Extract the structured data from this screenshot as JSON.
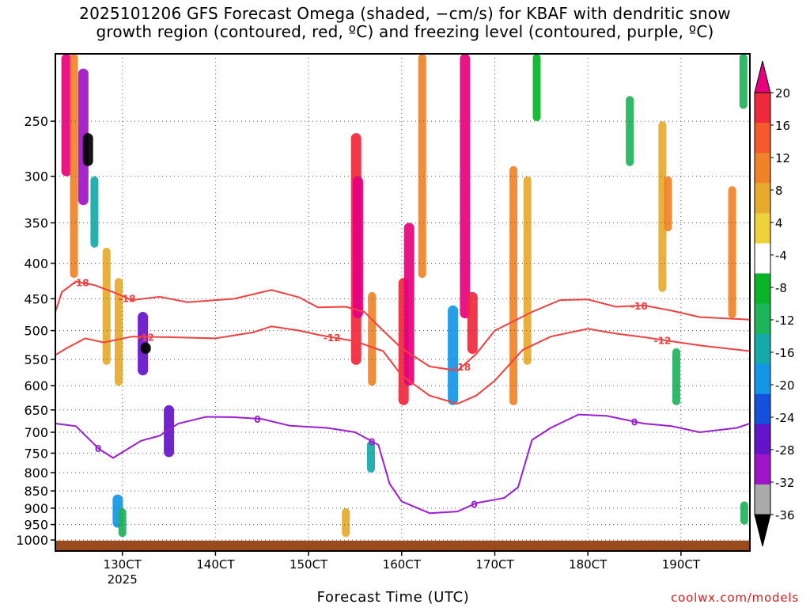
{
  "header": {
    "title_line1": "2025101206 GFS Forecast Omega (shaded, −cm/s) for KBAF with dendritic snow",
    "title_line2": "growth region (contoured, red, ºC) and freezing level (contoured, purple, ºC)"
  },
  "footer": {
    "xlabel": "Forecast Time (UTC)",
    "credit": "coolwx.com/models"
  },
  "chart_data": {
    "type": "heatmap",
    "title": "2025101206 GFS Forecast Omega (shaded, −cm/s) for KBAF with dendritic snow growth region (contoured, red, ºC) and freezing level (contoured, purple, ºC)",
    "xlabel": "Forecast Time (UTC)",
    "ylabel": "Pressure (hPa)",
    "xlim": [
      122.8,
      197.4
    ],
    "ylim": [
      1037,
      200
    ],
    "y_scale": "log",
    "x_ticks": [
      {
        "value": 130,
        "label": "130CT",
        "sublabel": "2025"
      },
      {
        "value": 140,
        "label": "140CT"
      },
      {
        "value": 150,
        "label": "150CT"
      },
      {
        "value": 160,
        "label": "160CT"
      },
      {
        "value": 170,
        "label": "170CT"
      },
      {
        "value": 180,
        "label": "180CT"
      },
      {
        "value": 190,
        "label": "190CT"
      }
    ],
    "y_ticks": [
      250,
      300,
      350,
      400,
      450,
      500,
      550,
      600,
      650,
      700,
      750,
      800,
      850,
      900,
      950,
      1000
    ],
    "grid": true,
    "colorbar": {
      "labels": [
        "20",
        "16",
        "12",
        "8",
        "4",
        "-4",
        "-8",
        "-12",
        "-16",
        "-20",
        "-24",
        "-28",
        "-32",
        "-36"
      ],
      "colors": [
        "#e6007e",
        "#f0283c",
        "#f55a2d",
        "#f08228",
        "#e6aa2d",
        "#eed23c",
        "#ffffff",
        "#0ab428",
        "#1eb45a",
        "#14aaaa",
        "#1496e6",
        "#1450dc",
        "#6414c8",
        "#a014c8",
        "#aaaaaa",
        "#000000"
      ],
      "top_extend_color": "#e6007e",
      "bottom_extend_color": "#000000"
    },
    "omega_cells": [
      {
        "t": 124.0,
        "p1": 200,
        "p2": 300,
        "level": 20
      },
      {
        "t": 124.8,
        "p1": 200,
        "p2": 420,
        "level": 12
      },
      {
        "t": 125.8,
        "p1": 210,
        "p2": 330,
        "level": -28
      },
      {
        "t": 126.3,
        "p1": 260,
        "p2": 290,
        "level": -36
      },
      {
        "t": 127.0,
        "p1": 300,
        "p2": 380,
        "level": -12
      },
      {
        "t": 128.3,
        "p1": 380,
        "p2": 560,
        "level": 8
      },
      {
        "t": 129.6,
        "p1": 420,
        "p2": 600,
        "level": 8
      },
      {
        "t": 132.2,
        "p1": 470,
        "p2": 580,
        "level": -24
      },
      {
        "t": 132.5,
        "p1": 520,
        "p2": 540,
        "level": -36
      },
      {
        "t": 135.0,
        "p1": 640,
        "p2": 760,
        "level": -24
      },
      {
        "t": 129.5,
        "p1": 860,
        "p2": 960,
        "level": -16
      },
      {
        "t": 130.0,
        "p1": 900,
        "p2": 990,
        "level": -8
      },
      {
        "t": 155.1,
        "p1": 260,
        "p2": 560,
        "level": 16
      },
      {
        "t": 155.3,
        "p1": 300,
        "p2": 480,
        "level": 20
      },
      {
        "t": 156.8,
        "p1": 440,
        "p2": 600,
        "level": 12
      },
      {
        "t": 154.0,
        "p1": 900,
        "p2": 990,
        "level": 8
      },
      {
        "t": 156.7,
        "p1": 720,
        "p2": 800,
        "level": -12
      },
      {
        "t": 160.2,
        "p1": 420,
        "p2": 640,
        "level": 16
      },
      {
        "t": 160.8,
        "p1": 350,
        "p2": 600,
        "level": 20
      },
      {
        "t": 162.2,
        "p1": 200,
        "p2": 420,
        "level": 12
      },
      {
        "t": 165.5,
        "p1": 460,
        "p2": 640,
        "level": -16
      },
      {
        "t": 166.8,
        "p1": 200,
        "p2": 480,
        "level": 20
      },
      {
        "t": 167.6,
        "p1": 440,
        "p2": 540,
        "level": 16
      },
      {
        "t": 172.0,
        "p1": 290,
        "p2": 640,
        "level": 12
      },
      {
        "t": 173.5,
        "p1": 300,
        "p2": 560,
        "level": 8
      },
      {
        "t": 174.5,
        "p1": 200,
        "p2": 250,
        "level": -4
      },
      {
        "t": 184.5,
        "p1": 230,
        "p2": 290,
        "level": -8
      },
      {
        "t": 188.0,
        "p1": 250,
        "p2": 440,
        "level": 8
      },
      {
        "t": 188.6,
        "p1": 300,
        "p2": 360,
        "level": 12
      },
      {
        "t": 189.5,
        "p1": 530,
        "p2": 640,
        "level": -8
      },
      {
        "t": 195.5,
        "p1": 310,
        "p2": 480,
        "level": 12
      },
      {
        "t": 196.7,
        "p1": 200,
        "p2": 240,
        "level": -8
      },
      {
        "t": 196.8,
        "p1": 880,
        "p2": 950,
        "level": -8
      }
    ],
    "dgz_lines": [
      {
        "label": "-18",
        "label_at": [
          125.5,
          130.5,
          166.5,
          185.5
        ],
        "points": [
          [
            122.8,
            470
          ],
          [
            123.5,
            440
          ],
          [
            125,
            425
          ],
          [
            127,
            430
          ],
          [
            129,
            440
          ],
          [
            131,
            452
          ],
          [
            134,
            447
          ],
          [
            137,
            455
          ],
          [
            142,
            450
          ],
          [
            146,
            437
          ],
          [
            149,
            448
          ],
          [
            151,
            463
          ],
          [
            154,
            462
          ],
          [
            156,
            470
          ],
          [
            158,
            500
          ],
          [
            160,
            530
          ],
          [
            163,
            563
          ],
          [
            166,
            571
          ],
          [
            168,
            540
          ],
          [
            170,
            500
          ],
          [
            174,
            470
          ],
          [
            177,
            452
          ],
          [
            180,
            451
          ],
          [
            183,
            462
          ],
          [
            186,
            460
          ],
          [
            189,
            468
          ],
          [
            192,
            478
          ],
          [
            197.4,
            482
          ]
        ]
      },
      {
        "label": "-12",
        "label_at": [
          132.5,
          152.5,
          188
        ],
        "points": [
          [
            122.8,
            542
          ],
          [
            124,
            530
          ],
          [
            126,
            513
          ],
          [
            128,
            520
          ],
          [
            131,
            510
          ],
          [
            135,
            511
          ],
          [
            140,
            513
          ],
          [
            144,
            503
          ],
          [
            146,
            493
          ],
          [
            149,
            500
          ],
          [
            151,
            507
          ],
          [
            155,
            518
          ],
          [
            158,
            535
          ],
          [
            160,
            580
          ],
          [
            163,
            620
          ],
          [
            166,
            637
          ],
          [
            168,
            620
          ],
          [
            170,
            590
          ],
          [
            173,
            533
          ],
          [
            176,
            510
          ],
          [
            180,
            497
          ],
          [
            183,
            505
          ],
          [
            186,
            511
          ],
          [
            189,
            518
          ],
          [
            192,
            525
          ],
          [
            197.4,
            535
          ]
        ]
      }
    ],
    "freezing_level": {
      "label": "0",
      "label_at": [
        127.4,
        144.5,
        156.8,
        167.8,
        185
      ],
      "points": [
        [
          122.8,
          680
        ],
        [
          125,
          686
        ],
        [
          127.5,
          740
        ],
        [
          129,
          762
        ],
        [
          132,
          720
        ],
        [
          134,
          708
        ],
        [
          136,
          680
        ],
        [
          139,
          665
        ],
        [
          142,
          666
        ],
        [
          145,
          670
        ],
        [
          148,
          685
        ],
        [
          152,
          690
        ],
        [
          155,
          700
        ],
        [
          157.5,
          730
        ],
        [
          158.7,
          830
        ],
        [
          160,
          880
        ],
        [
          163,
          915
        ],
        [
          166,
          910
        ],
        [
          168,
          885
        ],
        [
          171,
          870
        ],
        [
          172.5,
          840
        ],
        [
          174,
          718
        ],
        [
          176,
          690
        ],
        [
          179,
          660
        ],
        [
          182,
          663
        ],
        [
          186,
          680
        ],
        [
          189,
          686
        ],
        [
          192,
          700
        ],
        [
          196,
          690
        ],
        [
          197.4,
          680
        ]
      ]
    }
  }
}
